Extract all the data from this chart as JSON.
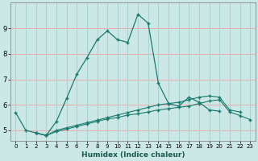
{
  "title": "",
  "xlabel": "Humidex (Indice chaleur)",
  "background_color": "#cce8e6",
  "line_color": "#1a7a6e",
  "grid_h_color": "#e8b0b0",
  "grid_v_color": "#aad4d2",
  "x_values": [
    0,
    1,
    2,
    3,
    4,
    5,
    6,
    7,
    8,
    9,
    10,
    11,
    12,
    13,
    14,
    15,
    16,
    17,
    18,
    19,
    20,
    21,
    22,
    23
  ],
  "series1": [
    5.7,
    5.0,
    4.9,
    4.8,
    5.35,
    6.25,
    7.2,
    7.85,
    8.55,
    8.9,
    8.55,
    8.45,
    9.55,
    9.2,
    6.85,
    6.05,
    5.95,
    6.3,
    6.1,
    5.8,
    5.75,
    null,
    null,
    null
  ],
  "series2": [
    null,
    null,
    4.9,
    4.8,
    5.0,
    5.1,
    5.2,
    5.3,
    5.4,
    5.5,
    5.6,
    5.7,
    5.8,
    5.9,
    6.0,
    6.05,
    6.1,
    6.2,
    6.3,
    6.35,
    6.3,
    5.8,
    5.72,
    null
  ],
  "series3": [
    null,
    null,
    4.9,
    4.8,
    4.95,
    5.05,
    5.15,
    5.25,
    5.35,
    5.45,
    5.5,
    5.6,
    5.65,
    5.72,
    5.8,
    5.85,
    5.9,
    5.95,
    6.05,
    6.15,
    6.2,
    5.72,
    5.58,
    5.42
  ],
  "ylim": [
    4.6,
    10.0
  ],
  "xlim": [
    -0.5,
    23.5
  ],
  "yticks": [
    5,
    6,
    7,
    8,
    9
  ],
  "xticks": [
    0,
    1,
    2,
    3,
    4,
    5,
    6,
    7,
    8,
    9,
    10,
    11,
    12,
    13,
    14,
    15,
    16,
    17,
    18,
    19,
    20,
    21,
    22,
    23
  ]
}
